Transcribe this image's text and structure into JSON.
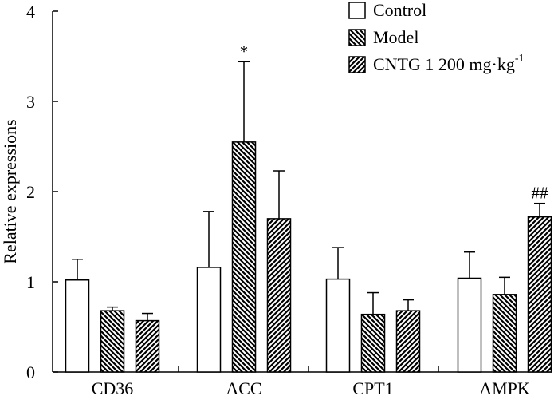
{
  "chart_data": {
    "type": "bar",
    "title": "",
    "xlabel": "",
    "ylabel": "Relative expressions",
    "ylim": [
      0,
      4
    ],
    "yticks": [
      0,
      1,
      2,
      3,
      4
    ],
    "yticklabels": [
      "0",
      "1",
      "2",
      "3",
      "4"
    ],
    "categories": [
      "CD36",
      "ACC",
      "CPT1",
      "AMPK"
    ],
    "series": [
      {
        "name": "Control",
        "pattern": "open",
        "values": [
          1.02,
          1.16,
          1.03,
          1.04
        ],
        "errors": [
          0.23,
          0.62,
          0.35,
          0.29
        ],
        "annotations": [
          "",
          "",
          "",
          ""
        ]
      },
      {
        "name": "Model",
        "pattern": "back-diagonal-hatch",
        "values": [
          0.68,
          2.55,
          0.64,
          0.86
        ],
        "errors": [
          0.04,
          0.89,
          0.24,
          0.19
        ],
        "annotations": [
          "",
          "*",
          "",
          ""
        ]
      },
      {
        "name": "CNTG 1 200 mg·kg",
        "name_superscript": "-1",
        "pattern": "forward-diagonal-hatch",
        "values": [
          0.57,
          1.7,
          0.68,
          1.72
        ],
        "errors": [
          0.08,
          0.53,
          0.12,
          0.15
        ],
        "annotations": [
          "",
          "",
          "",
          "##"
        ]
      }
    ],
    "legend_position": "top-right",
    "grid": false
  },
  "colors": {
    "bar_fill": "#ffffff",
    "stroke": "#000000"
  }
}
